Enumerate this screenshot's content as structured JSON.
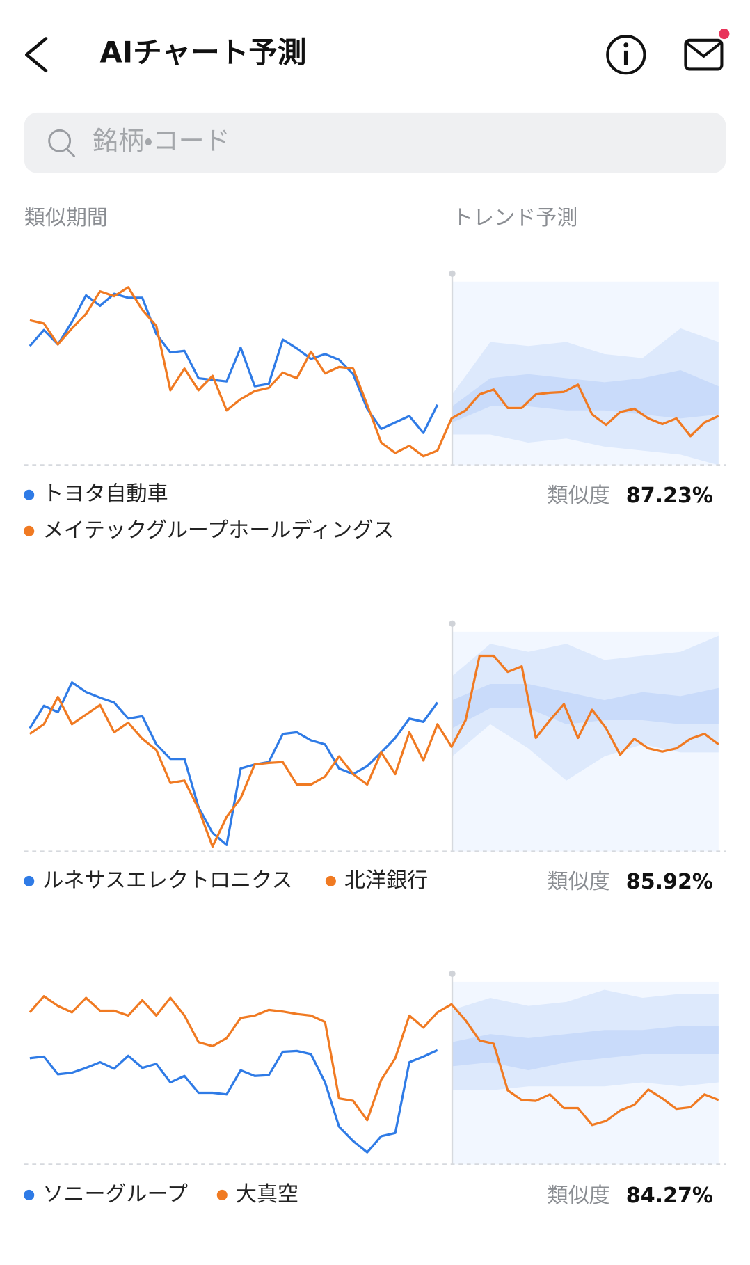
{
  "header": {
    "title": "AIチャート予測"
  },
  "search": {
    "placeholder": "銘柄・コード"
  },
  "columns": {
    "left": "類似期間",
    "right": "トレンド予測"
  },
  "chart_data": [
    {
      "type": "line",
      "ylim": [
        0,
        240
      ],
      "series": [
        {
          "name": "トヨタ自動車",
          "color": "#2f7be6",
          "values": [
            148,
            168,
            150,
            178,
            211,
            198,
            213,
            208,
            208,
            163,
            140,
            142,
            108,
            106,
            104,
            146,
            98,
            101,
            156,
            145,
            132,
            138,
            131,
            113,
            70,
            45,
            53,
            61,
            40,
            75
          ]
        },
        {
          "name": "メイテックグループホールディングス",
          "color": "#f07a22",
          "values": [
            180,
            176,
            150,
            170,
            188,
            216,
            210,
            221,
            193,
            173,
            93,
            120,
            93,
            111,
            68,
            82,
            92,
            96,
            115,
            108,
            141,
            114,
            122,
            120,
            75,
            28,
            15,
            24,
            11,
            18,
            58,
            68,
            88,
            94,
            71,
            71,
            88,
            90,
            91,
            100,
            63,
            50,
            66,
            70,
            58,
            51,
            58,
            36,
            53,
            61
          ]
        }
      ],
      "bands": [
        {
          "color": "#dde9fc",
          "upper": [
            88,
            153,
            148,
            153,
            138,
            133,
            170,
            153
          ],
          "lower": [
            38,
            38,
            28,
            33,
            23,
            18,
            13,
            0
          ]
        },
        {
          "color": "#c9dbfa",
          "upper": [
            73,
            108,
            113,
            108,
            103,
            108,
            118,
            98
          ],
          "lower": [
            53,
            73,
            73,
            68,
            68,
            63,
            58,
            63
          ]
        }
      ],
      "similarity_label": "類似度",
      "similarity": "87.23%"
    },
    {
      "type": "line",
      "ylim": [
        0,
        280
      ],
      "series": [
        {
          "name": "ルネサスエレクトロニクス",
          "color": "#2f7be6",
          "values": [
            153,
            181,
            173,
            210,
            198,
            191,
            185,
            165,
            168,
            133,
            115,
            115,
            55,
            23,
            8,
            103,
            108,
            111,
            146,
            148,
            138,
            133,
            103,
            96,
            106,
            123,
            141,
            165,
            161,
            185
          ]
        },
        {
          "name": "北洋銀行",
          "color": "#f07a22",
          "values": [
            146,
            158,
            192,
            158,
            170,
            182,
            148,
            160,
            140,
            126,
            85,
            88,
            53,
            6,
            43,
            66,
            108,
            110,
            111,
            83,
            83,
            93,
            118,
            96,
            83,
            123,
            96,
            148,
            113,
            158,
            130,
            163,
            243,
            243,
            223,
            230,
            141,
            163,
            183,
            141,
            176,
            153,
            120,
            140,
            128,
            124,
            128,
            140,
            146,
            133
          ]
        }
      ],
      "bands": [
        {
          "color": "#dde9fc",
          "upper": [
            218,
            258,
            248,
            258,
            238,
            243,
            248,
            268
          ],
          "lower": [
            118,
            158,
            128,
            88,
            118,
            133,
            123,
            123
          ]
        },
        {
          "color": "#c9dbfa",
          "upper": [
            188,
            208,
            208,
            198,
            188,
            198,
            193,
            203
          ],
          "lower": [
            153,
            178,
            178,
            158,
            163,
            163,
            158,
            158
          ]
        }
      ],
      "similarity_label": "類似度",
      "similarity": "85.92%"
    },
    {
      "type": "line",
      "ylim": [
        0,
        240
      ],
      "series": [
        {
          "name": "ソニーグループ",
          "color": "#2f7be6",
          "values": [
            132,
            134,
            112,
            114,
            120,
            127,
            119,
            135,
            120,
            125,
            102,
            110,
            89,
            89,
            87,
            117,
            110,
            111,
            140,
            141,
            137,
            102,
            47,
            29,
            15,
            35,
            39,
            127,
            134,
            142
          ]
        },
        {
          "name": "大真空",
          "color": "#f07a22",
          "values": [
            189,
            209,
            197,
            189,
            207,
            191,
            191,
            185,
            204,
            185,
            207,
            185,
            152,
            147,
            157,
            182,
            185,
            192,
            190,
            187,
            185,
            177,
            82,
            79,
            55,
            105,
            132,
            185,
            170,
            189,
            199,
            179,
            154,
            150,
            92,
            80,
            79,
            87,
            70,
            70,
            49,
            54,
            67,
            74,
            93,
            82,
            69,
            71,
            87,
            80
          ]
        }
      ],
      "bands": [
        {
          "color": "#dde9fc",
          "upper": [
            192,
            207,
            197,
            202,
            217,
            207,
            212,
            212
          ],
          "lower": [
            92,
            92,
            97,
            97,
            97,
            102,
            97,
            102
          ]
        },
        {
          "color": "#c9dbfa",
          "upper": [
            152,
            162,
            157,
            162,
            167,
            167,
            172,
            172
          ],
          "lower": [
            122,
            127,
            117,
            127,
            132,
            137,
            137,
            137
          ]
        }
      ],
      "similarity_label": "類似度",
      "similarity": "84.27%"
    }
  ]
}
